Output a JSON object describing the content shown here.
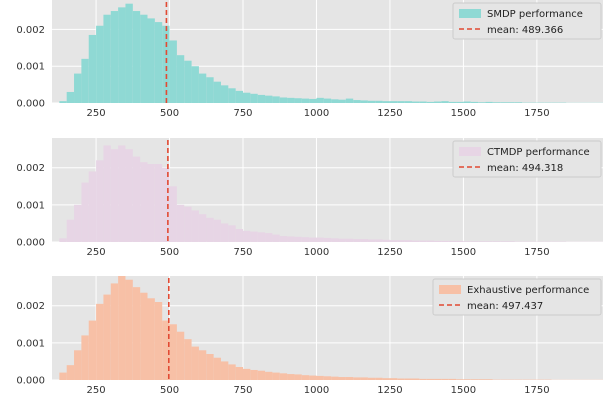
{
  "chart_data": [
    {
      "type": "histogram",
      "legend_placement": "top-right",
      "grid": true,
      "bin_width": 25,
      "color": "#8fd9d4",
      "mean_line_color": "#e24a33",
      "xlim": [
        100,
        1975
      ],
      "ylim": [
        0,
        0.0028
      ],
      "xticks": [
        250,
        500,
        750,
        1000,
        1250,
        1500,
        1750
      ],
      "xtick_labels": [
        "250",
        "500",
        "750",
        "1000",
        "1250",
        "1500",
        "1750"
      ],
      "yticks": [
        0,
        0.001,
        0.002
      ],
      "ytick_labels": [
        "0.000",
        "0.001",
        "0.002"
      ],
      "series_label": "SMDP performance",
      "mean_label": "mean: 489.366",
      "mean": 489.366,
      "bin_starts": [
        125,
        150,
        175,
        200,
        225,
        250,
        275,
        300,
        325,
        350,
        375,
        400,
        425,
        450,
        475,
        500,
        525,
        550,
        575,
        600,
        625,
        650,
        675,
        700,
        725,
        750,
        775,
        800,
        825,
        850,
        875,
        900,
        925,
        950,
        975,
        1000,
        1025,
        1050,
        1075,
        1100,
        1125,
        1150,
        1175,
        1200,
        1225,
        1250,
        1275,
        1300,
        1325,
        1350,
        1375,
        1400,
        1425,
        1450,
        1475,
        1500,
        1525,
        1550,
        1575,
        1600,
        1625,
        1650,
        1675,
        1700,
        1725,
        1750,
        1775,
        1800,
        1825,
        1850,
        1875,
        1900,
        1925,
        1950
      ],
      "values": [
        5e-05,
        0.0003,
        0.0008,
        0.0012,
        0.00185,
        0.0021,
        0.0024,
        0.0025,
        0.0026,
        0.0027,
        0.0025,
        0.0024,
        0.0023,
        0.0022,
        0.0021,
        0.0017,
        0.0013,
        0.00115,
        0.001,
        0.0008,
        0.0007,
        0.00058,
        0.00048,
        0.0004,
        0.00033,
        0.00028,
        0.00025,
        0.00022,
        0.0002,
        0.00018,
        0.00015,
        0.00014,
        0.00013,
        0.00012,
        0.00011,
        0.00014,
        0.00012,
        0.0001,
        9e-05,
        0.00012,
        8e-05,
        7e-05,
        6e-05,
        6e-05,
        5e-05,
        5e-05,
        5e-05,
        5e-05,
        4e-05,
        4e-05,
        3e-05,
        4e-05,
        5e-05,
        3e-05,
        3e-05,
        4e-05,
        3e-05,
        2e-05,
        3e-05,
        2e-05,
        2e-05,
        2e-05,
        2e-05,
        1e-05,
        1e-05,
        1e-05,
        1e-05,
        1e-05,
        1e-05,
        5e-06,
        5e-06,
        5e-06,
        5e-06,
        5e-06
      ]
    },
    {
      "type": "histogram",
      "legend_placement": "top-right",
      "grid": true,
      "bin_width": 25,
      "color": "#e7d5e5",
      "mean_line_color": "#e24a33",
      "xlim": [
        100,
        1975
      ],
      "ylim": [
        0,
        0.0028
      ],
      "xticks": [
        250,
        500,
        750,
        1000,
        1250,
        1500,
        1750
      ],
      "xtick_labels": [
        "250",
        "500",
        "750",
        "1000",
        "1250",
        "1500",
        "1750"
      ],
      "yticks": [
        0,
        0.001,
        0.002
      ],
      "ytick_labels": [
        "0.000",
        "0.001",
        "0.002"
      ],
      "series_label": "CTMDP performance",
      "mean_label": "mean: 494.318",
      "mean": 494.318,
      "bin_starts": [
        125,
        150,
        175,
        200,
        225,
        250,
        275,
        300,
        325,
        350,
        375,
        400,
        425,
        450,
        475,
        500,
        525,
        550,
        575,
        600,
        625,
        650,
        675,
        700,
        725,
        750,
        775,
        800,
        825,
        850,
        875,
        900,
        925,
        950,
        975,
        1000,
        1025,
        1050,
        1075,
        1100,
        1125,
        1150,
        1175,
        1200,
        1225,
        1250,
        1275,
        1300,
        1325,
        1350,
        1375,
        1400,
        1425,
        1450,
        1475,
        1500,
        1525,
        1550,
        1575,
        1600,
        1625,
        1650,
        1675,
        1700,
        1725,
        1750,
        1775,
        1800,
        1825,
        1850,
        1875,
        1900,
        1925,
        1950
      ],
      "values": [
        0.0001,
        0.0006,
        0.001,
        0.0016,
        0.0019,
        0.0022,
        0.0026,
        0.0025,
        0.0026,
        0.0025,
        0.0023,
        0.00215,
        0.0021,
        0.0021,
        0.002,
        0.0015,
        0.001,
        0.00095,
        0.00085,
        0.00075,
        0.00065,
        0.0006,
        0.0005,
        0.00045,
        0.00035,
        0.0003,
        0.00028,
        0.00026,
        0.00024,
        0.0002,
        0.00016,
        0.00015,
        0.00014,
        0.00013,
        0.00012,
        0.00012,
        0.00011,
        0.0001,
        9e-05,
        9e-05,
        8e-05,
        8e-05,
        7e-05,
        7e-05,
        6e-05,
        5e-05,
        5e-05,
        5e-05,
        4e-05,
        4e-05,
        4e-05,
        3e-05,
        3e-05,
        3e-05,
        3e-05,
        2e-05,
        2e-05,
        2e-05,
        2e-05,
        2e-05,
        2e-05,
        2e-05,
        1e-05,
        1e-05,
        1e-05,
        1e-05,
        1e-05,
        1e-05,
        1e-05,
        5e-06,
        5e-06,
        5e-06,
        5e-06,
        5e-06
      ]
    },
    {
      "type": "histogram",
      "legend_placement": "top-right",
      "grid": true,
      "bin_width": 25,
      "color": "#f7c0a6",
      "mean_line_color": "#e24a33",
      "xlim": [
        100,
        1975
      ],
      "ylim": [
        0,
        0.0028
      ],
      "xticks": [
        250,
        500,
        750,
        1000,
        1250,
        1500,
        1750
      ],
      "xtick_labels": [
        "250",
        "500",
        "750",
        "1000",
        "1250",
        "1500",
        "1750"
      ],
      "yticks": [
        0,
        0.001,
        0.002
      ],
      "ytick_labels": [
        "0.000",
        "0.001",
        "0.002"
      ],
      "series_label": "Exhaustive performance",
      "mean_label": "mean: 497.437",
      "mean": 497.437,
      "bin_starts": [
        125,
        150,
        175,
        200,
        225,
        250,
        275,
        300,
        325,
        350,
        375,
        400,
        425,
        450,
        475,
        500,
        525,
        550,
        575,
        600,
        625,
        650,
        675,
        700,
        725,
        750,
        775,
        800,
        825,
        850,
        875,
        900,
        925,
        950,
        975,
        1000,
        1025,
        1050,
        1075,
        1100,
        1125,
        1150,
        1175,
        1200,
        1225,
        1250,
        1275,
        1300,
        1325,
        1350,
        1375,
        1400,
        1425,
        1450,
        1475,
        1500,
        1525,
        1550,
        1575,
        1600,
        1625,
        1650,
        1675,
        1700,
        1725,
        1750,
        1775,
        1800,
        1825,
        1850,
        1875,
        1900,
        1925,
        1950
      ],
      "values": [
        0.0002,
        0.0004,
        0.0008,
        0.0012,
        0.0016,
        0.00205,
        0.0023,
        0.0026,
        0.0028,
        0.0027,
        0.0025,
        0.00235,
        0.0022,
        0.0021,
        0.0016,
        0.0015,
        0.0013,
        0.0011,
        0.0009,
        0.0008,
        0.0007,
        0.0006,
        0.0005,
        0.00042,
        0.00035,
        0.0003,
        0.00027,
        0.00025,
        0.00022,
        0.0002,
        0.00018,
        0.00016,
        0.00015,
        0.00013,
        0.00012,
        0.00011,
        0.0001,
        9e-05,
        8e-05,
        8e-05,
        7e-05,
        7e-05,
        6e-05,
        6e-05,
        5e-05,
        5e-05,
        4e-05,
        4e-05,
        4e-05,
        3e-05,
        3e-05,
        3e-05,
        3e-05,
        3e-05,
        2e-05,
        2e-05,
        2e-05,
        2e-05,
        2e-05,
        1e-05,
        1e-05,
        1e-05,
        1e-05,
        1e-05,
        1e-05,
        1e-05,
        1e-05,
        5e-06,
        5e-06,
        5e-06,
        5e-06,
        5e-06,
        5e-06,
        5e-06
      ]
    }
  ]
}
